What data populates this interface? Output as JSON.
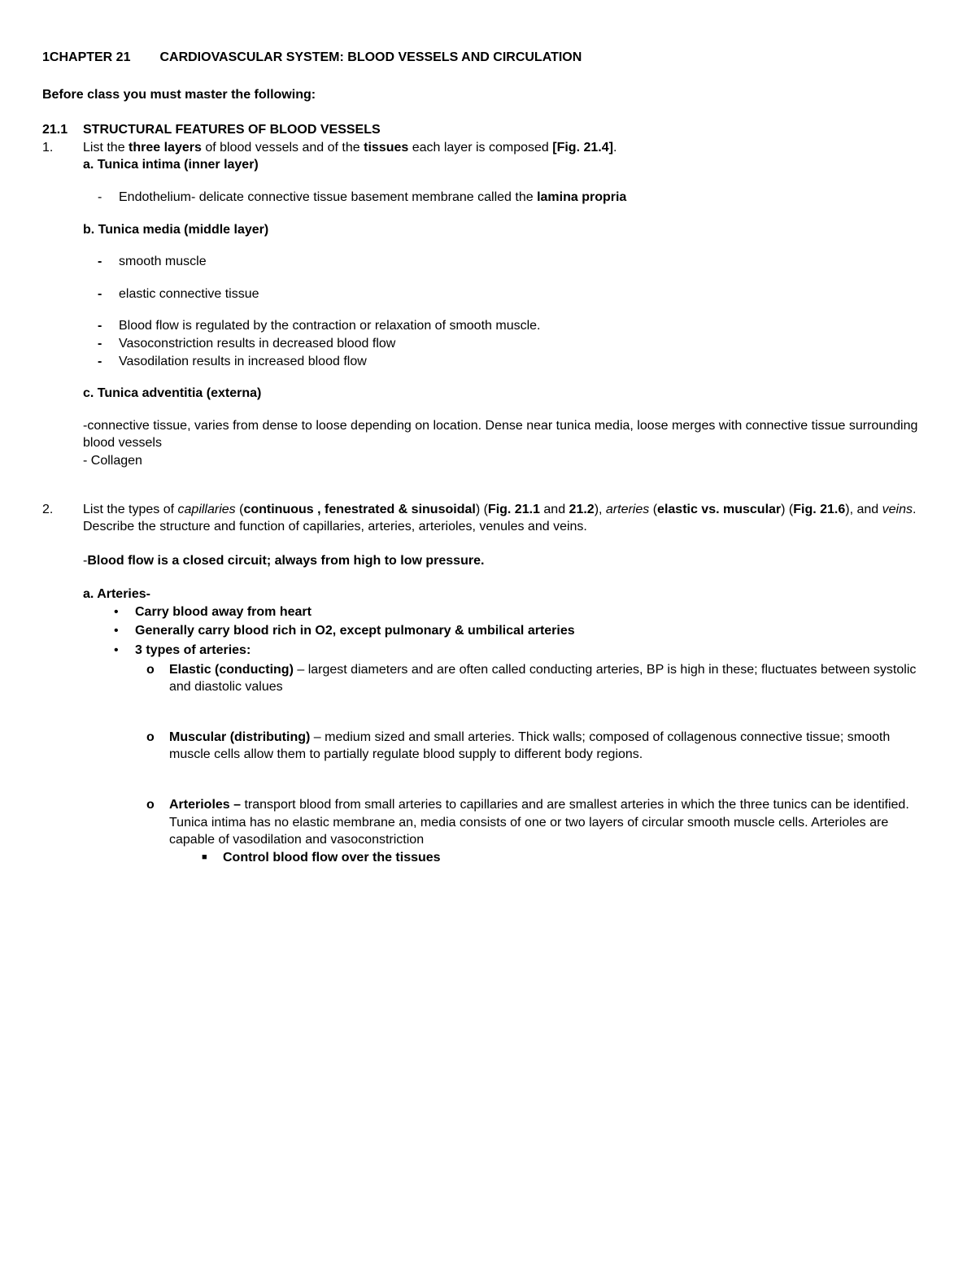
{
  "document": {
    "type": "study-notes",
    "background_color": "#ffffff",
    "text_color": "#000000",
    "font_family": "Arial",
    "font_size_pt": 12
  },
  "chapter": {
    "label": "1CHAPTER 21",
    "title": "CARDIOVASCULAR SYSTEM: BLOOD VESSELS AND CIRCULATION"
  },
  "before_class": "Before class you must master the following:",
  "section": {
    "number": "21.1",
    "title": "STRUCTURAL FEATURES OF BLOOD VESSELS"
  },
  "item1": {
    "number": "1.",
    "intro_pre": "List the ",
    "intro_b1": "three layers",
    "intro_mid": " of blood vessels and of the ",
    "intro_b2": "tissues",
    "intro_post": " each layer is composed ",
    "intro_fig": "[Fig. 21.4]",
    "intro_end": ".",
    "a_title": "a. Tunica intima (inner layer)",
    "a_bullet_pre": "Endothelium- delicate connective tissue basement membrane called the ",
    "a_bullet_bold": "lamina propria",
    "b_title": "b. Tunica media (middle layer)",
    "b_bul1": "smooth muscle",
    "b_bul2": "elastic connective tissue",
    "b_bul3": "Blood flow is regulated by the contraction or relaxation of smooth muscle.",
    "b_bul4": "Vasoconstriction results in decreased blood flow",
    "b_bul5": "Vasodilation results in increased blood flow",
    "c_title": "c. Tunica adventitia (externa)",
    "c_line1": "-connective tissue, varies from dense to loose depending on location. Dense near tunica media, loose merges with connective tissue surrounding blood vessels",
    "c_line2": "- Collagen"
  },
  "item2": {
    "number": "2.",
    "intro_p1": "List the types of ",
    "intro_i1": "capillaries",
    "intro_p2": " (",
    "intro_b1": "continuous , fenestrated & sinusoidal",
    "intro_p3": ") (",
    "intro_b2": "Fig. 21.1",
    "intro_p4": " and ",
    "intro_b3": "21.2",
    "intro_p5": "), ",
    "intro_i2": "arteries",
    "intro_p6": " (",
    "intro_b4": "elastic vs. muscular",
    "intro_p7": ") (",
    "intro_b5": "Fig. 21.6",
    "intro_p8": "), and ",
    "intro_i3": "veins",
    "intro_p9": ".  Describe the structure and function of capillaries, arteries, arterioles, venules and veins.",
    "closed_circuit_pre": "-",
    "closed_circuit": "Blood flow is a closed circuit; always from high to low pressure.",
    "a_title": "a.  Arteries-",
    "a_bul1": "Carry blood away from heart",
    "a_bul2": "Generally carry blood rich in O2, except pulmonary & umbilical arteries",
    "a_bul3": "3 types of arteries:",
    "type1_b": "Elastic (conducting)",
    "type1_t": " – largest diameters and are often called conducting arteries, BP is high in these; fluctuates between systolic and diastolic values",
    "type2_b": "Muscular (distributing)",
    "type2_t": " – medium sized and small arteries. Thick walls; composed of collagenous connective tissue; smooth muscle cells allow them to partially regulate blood supply to different body regions.",
    "type3_b": "Arterioles – ",
    "type3_t": "transport blood from small arteries to capillaries and are smallest arteries in which the three tunics can be identified. Tunica intima has no elastic membrane an, media consists of one or two layers of circular smooth muscle cells. Arterioles are capable of vasodilation and vasoconstriction",
    "type3_sub": "Control blood flow over the tissues"
  }
}
